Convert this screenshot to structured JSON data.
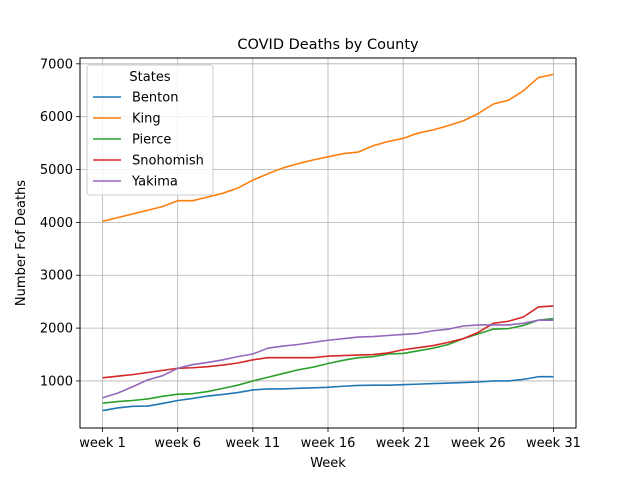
{
  "chart_data": {
    "type": "line",
    "title": "COVID Deaths by County",
    "xlabel": "Week",
    "ylabel": "Number Fof Deaths",
    "legend_title": "States",
    "legend_position": "upper-left",
    "grid": true,
    "x": [
      1,
      2,
      3,
      4,
      5,
      6,
      7,
      8,
      9,
      10,
      11,
      12,
      13,
      14,
      15,
      16,
      17,
      18,
      19,
      20,
      21,
      22,
      23,
      24,
      25,
      26,
      27,
      28,
      29,
      30,
      31
    ],
    "x_ticks": [
      1,
      6,
      11,
      16,
      21,
      26,
      31
    ],
    "x_tick_labels": [
      "week 1",
      "week 6",
      "week 11",
      "week 16",
      "week 21",
      "week 26",
      "week 31"
    ],
    "xlim": [
      -0.5,
      32.5
    ],
    "y_ticks": [
      1000,
      2000,
      3000,
      4000,
      5000,
      6000,
      7000
    ],
    "y_tick_labels": [
      "1000",
      "2000",
      "3000",
      "4000",
      "5000",
      "6000",
      "7000"
    ],
    "ylim": [
      110,
      7110
    ],
    "series": [
      {
        "name": "Benton",
        "color": "#1f77b4",
        "values": [
          440,
          490,
          520,
          525,
          575,
          630,
          670,
          715,
          745,
          780,
          830,
          850,
          850,
          860,
          870,
          880,
          900,
          915,
          920,
          920,
          930,
          940,
          950,
          960,
          970,
          980,
          1000,
          1000,
          1030,
          1080,
          1080
        ]
      },
      {
        "name": "King",
        "color": "#ff7f0e",
        "values": [
          4020,
          4090,
          4160,
          4230,
          4300,
          4410,
          4410,
          4480,
          4550,
          4650,
          4800,
          4920,
          5030,
          5110,
          5180,
          5240,
          5300,
          5330,
          5450,
          5530,
          5590,
          5690,
          5750,
          5830,
          5920,
          6060,
          6240,
          6310,
          6490,
          6740,
          6800
        ]
      },
      {
        "name": "Pierce",
        "color": "#2ca02c",
        "values": [
          580,
          610,
          630,
          660,
          710,
          750,
          760,
          800,
          860,
          920,
          1000,
          1070,
          1140,
          1210,
          1260,
          1330,
          1390,
          1440,
          1460,
          1510,
          1520,
          1570,
          1620,
          1690,
          1800,
          1890,
          1980,
          1990,
          2050,
          2150,
          2180
        ]
      },
      {
        "name": "Snohomish",
        "color": "#d62728",
        "values": [
          1060,
          1090,
          1120,
          1160,
          1200,
          1240,
          1250,
          1270,
          1300,
          1340,
          1400,
          1440,
          1440,
          1440,
          1440,
          1470,
          1480,
          1490,
          1500,
          1530,
          1590,
          1630,
          1670,
          1730,
          1800,
          1920,
          2090,
          2130,
          2210,
          2400,
          2420
        ]
      },
      {
        "name": "Yakima",
        "color": "#9467bd",
        "values": [
          680,
          770,
          890,
          1020,
          1100,
          1240,
          1310,
          1350,
          1400,
          1460,
          1510,
          1620,
          1660,
          1690,
          1730,
          1770,
          1800,
          1830,
          1840,
          1860,
          1880,
          1900,
          1950,
          1980,
          2040,
          2060,
          2060,
          2060,
          2090,
          2150,
          2150
        ]
      }
    ]
  }
}
